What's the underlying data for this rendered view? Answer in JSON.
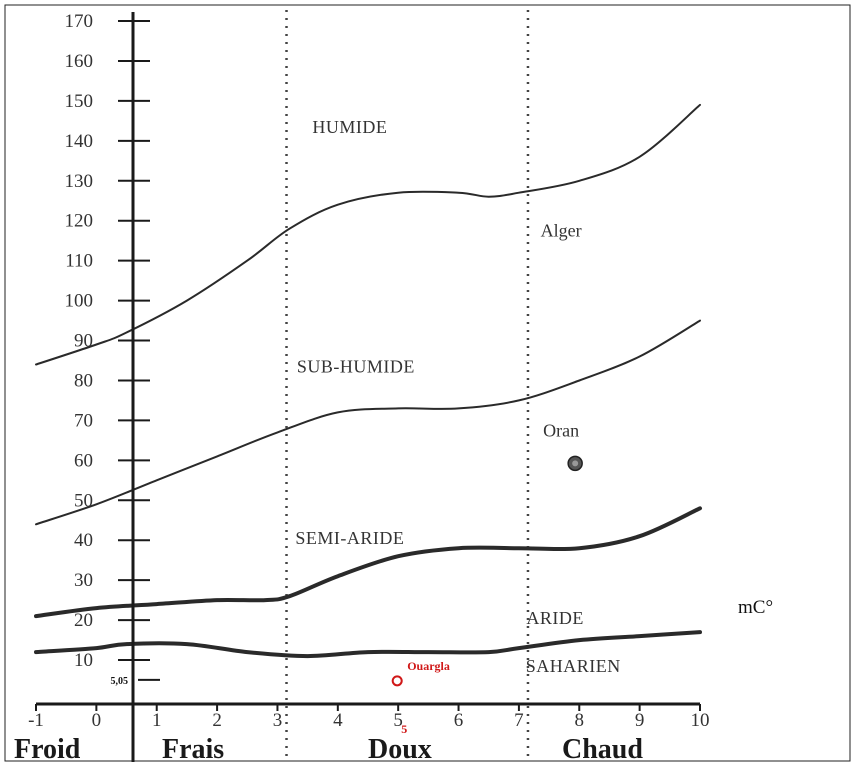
{
  "chart_data": {
    "type": "line",
    "title": "",
    "xlabel": "",
    "ylabel": "",
    "x_unit_label": "mC°",
    "xlim": [
      -1,
      10
    ],
    "ylim": [
      0,
      170
    ],
    "y_ticks": [
      "10",
      "20",
      "30",
      "40",
      "50",
      "60",
      "70",
      "80",
      "90",
      "100",
      "110",
      "120",
      "130",
      "140",
      "150",
      "160",
      "170"
    ],
    "x_ticks": [
      "-1",
      "0",
      "1",
      "2",
      "3",
      "4",
      "5",
      "6",
      "7",
      "8",
      "9",
      "10"
    ],
    "special_y_tick": {
      "value": 5.05,
      "label": "5,05"
    },
    "special_x_tick": {
      "value": 5.05,
      "label": "5"
    },
    "zone_boundaries": [
      0,
      3,
      7
    ],
    "temperature_zones": [
      {
        "label": "Froid",
        "center": -0.5
      },
      {
        "label": "Frais",
        "center": 1.5
      },
      {
        "label": "Doux",
        "center": 5
      },
      {
        "label": "Chaud",
        "center": 8.5
      }
    ],
    "series": [
      {
        "width": 2,
        "points": [
          [
            -1.0,
            84
          ],
          [
            0.0,
            89
          ],
          [
            0.5,
            92
          ],
          [
            1.5,
            100
          ],
          [
            2.5,
            110
          ],
          [
            3.2,
            118
          ],
          [
            4.0,
            124
          ],
          [
            5.0,
            127
          ],
          [
            6.0,
            127
          ],
          [
            6.5,
            126
          ],
          [
            7.0,
            127
          ],
          [
            8.0,
            130
          ],
          [
            9.0,
            136
          ],
          [
            10.0,
            149
          ]
        ]
      },
      {
        "width": 2,
        "points": [
          [
            -1.0,
            44
          ],
          [
            0.0,
            49
          ],
          [
            1.0,
            55
          ],
          [
            2.0,
            61
          ],
          [
            3.0,
            67
          ],
          [
            4.0,
            72
          ],
          [
            5.0,
            73
          ],
          [
            6.0,
            73
          ],
          [
            7.0,
            75
          ],
          [
            8.0,
            80
          ],
          [
            9.0,
            86
          ],
          [
            10.0,
            95
          ]
        ]
      },
      {
        "width": 4,
        "points": [
          [
            -1.0,
            21
          ],
          [
            0.0,
            23
          ],
          [
            1.0,
            24
          ],
          [
            2.0,
            25
          ],
          [
            2.8,
            25
          ],
          [
            3.2,
            26
          ],
          [
            4.0,
            31
          ],
          [
            5.0,
            36
          ],
          [
            6.0,
            38
          ],
          [
            7.0,
            38
          ],
          [
            8.0,
            38
          ],
          [
            9.0,
            41
          ],
          [
            10.0,
            48
          ]
        ]
      },
      {
        "width": 4,
        "points": [
          [
            -1.0,
            12
          ],
          [
            0.0,
            13
          ],
          [
            0.5,
            14
          ],
          [
            1.5,
            14
          ],
          [
            2.5,
            12
          ],
          [
            3.5,
            11
          ],
          [
            4.5,
            12
          ],
          [
            5.5,
            12
          ],
          [
            6.5,
            12
          ],
          [
            7.0,
            13
          ],
          [
            8.0,
            15
          ],
          [
            9.0,
            16
          ],
          [
            10.0,
            17
          ]
        ]
      }
    ],
    "region_labels": [
      {
        "text": "HUMIDE",
        "x": 4.2,
        "y": 142
      },
      {
        "text": "SUB-HUMIDE",
        "x": 4.3,
        "y": 82
      },
      {
        "text": "SEMI-ARIDE",
        "x": 4.2,
        "y": 39
      },
      {
        "text": "ARIDE",
        "x": 7.6,
        "y": 19
      },
      {
        "text": "SAHARIEN",
        "x": 7.9,
        "y": 7
      }
    ],
    "stations": [
      {
        "name": "Alger",
        "x": 7.7,
        "y": 116,
        "marker": false,
        "highlight": false
      },
      {
        "name": "Oran",
        "x": 7.7,
        "y": 66,
        "marker": true,
        "highlight": false
      },
      {
        "name": "Ouargla",
        "x": 5.05,
        "y": 5.05,
        "marker": true,
        "highlight": true
      }
    ],
    "grid": false
  }
}
